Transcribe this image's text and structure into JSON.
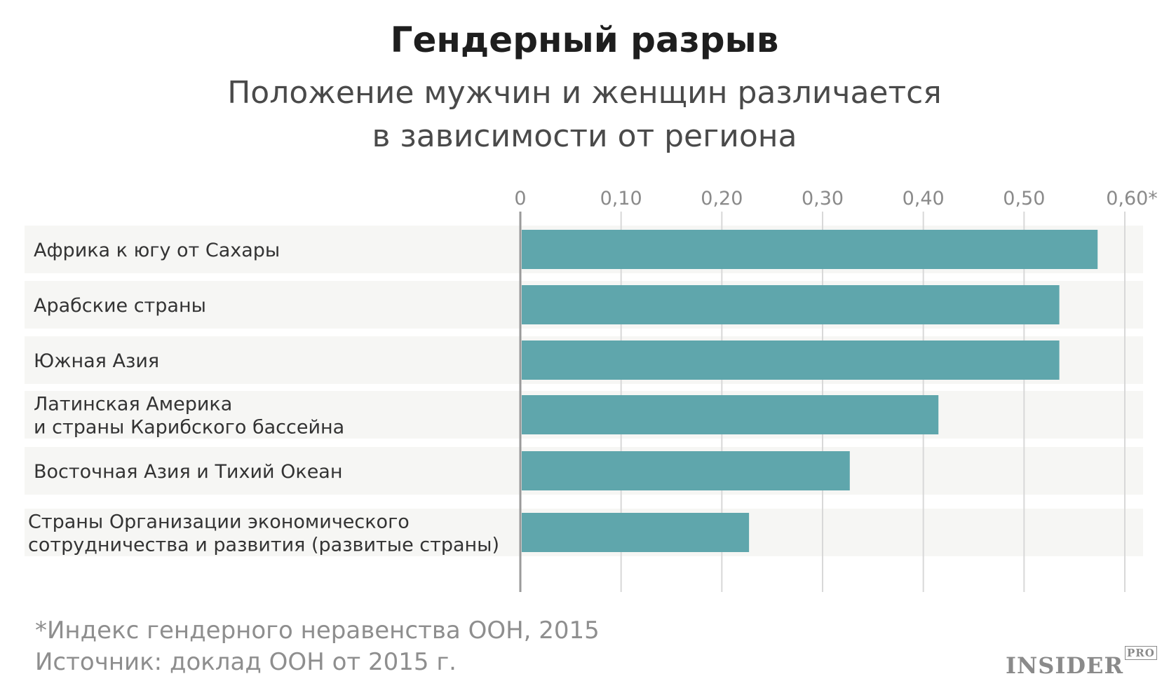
{
  "header": {
    "title": "Гендерный разрыв",
    "subtitle_lines": [
      "Положение мужчин и женщин различается",
      "в зависимости от региона"
    ]
  },
  "footer": {
    "footnote": "*Индекс гендерного неравенства ООН, 2015",
    "source": "Источник: доклад ООН от 2015 г.",
    "logo_main": "INSIDER",
    "logo_sup": "PRO"
  },
  "colors": {
    "bar": "#5fa6ac",
    "row_background": "#f6f6f4",
    "grid": "#d8d8d8",
    "axis": "#9a9a9a"
  },
  "chart_data": {
    "type": "bar",
    "orientation": "horizontal",
    "categories": [
      [
        "Африка к югу от Сахары"
      ],
      [
        "Арабские страны"
      ],
      [
        "Южная Азия"
      ],
      [
        "Латинская Америка",
        "и страны Карибского бассейна"
      ],
      [
        "Восточная Азия и Тихий Океан"
      ],
      [
        "Страны Организации экономического",
        "сотрудничества и развития (развитые страны)"
      ]
    ],
    "values": [
      0.573,
      0.535,
      0.535,
      0.415,
      0.327,
      0.227
    ],
    "tick_values": [
      0,
      0.1,
      0.2,
      0.3,
      0.4,
      0.5,
      0.6
    ],
    "tick_labels": [
      "0",
      "0,10",
      "0,20",
      "0,30",
      "0,40",
      "0,50",
      "0,60*"
    ],
    "xlim": [
      0,
      0.6
    ],
    "grid": true,
    "axis_position": "top"
  }
}
